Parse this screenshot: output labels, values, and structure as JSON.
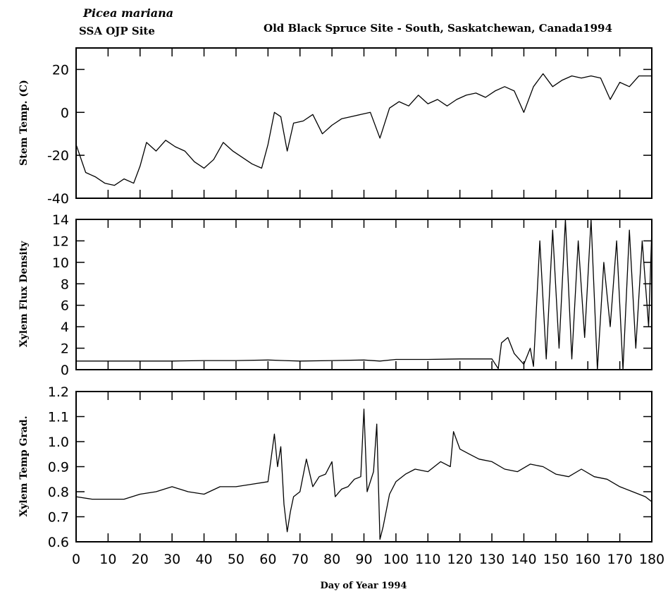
{
  "header": {
    "species": "Picea mariana",
    "site": "SSA OJP Site",
    "title": "Old Black Spruce Site - South, Saskatchewan, Canada1994"
  },
  "chart_data": [
    {
      "type": "line",
      "ylabel": "Stem Temp. (C)",
      "xlabel": "",
      "ylim": [
        -40,
        30
      ],
      "yticks": [
        -40,
        -20,
        0,
        20
      ],
      "xlim": [
        0,
        180
      ],
      "series": [
        {
          "x": [
            0,
            3,
            6,
            9,
            12,
            15,
            18,
            20,
            22,
            25,
            28,
            31,
            34,
            37,
            40,
            43,
            46,
            49,
            52,
            55,
            58,
            60,
            62,
            64,
            66,
            68,
            71,
            74,
            77,
            80,
            83,
            86,
            89,
            92,
            95,
            98,
            101,
            104,
            107,
            110,
            113,
            116,
            119,
            122,
            125,
            128,
            131,
            134,
            137,
            140,
            143,
            146,
            149,
            152,
            155,
            158,
            161,
            164,
            167,
            170,
            173,
            176,
            180
          ],
          "y": [
            -15,
            -28,
            -30,
            -33,
            -34,
            -31,
            -33,
            -25,
            -14,
            -18,
            -13,
            -16,
            -18,
            -23,
            -26,
            -22,
            -14,
            -18,
            -21,
            -24,
            -26,
            -15,
            0,
            -2,
            -18,
            -5,
            -4,
            -1,
            -10,
            -6,
            -3,
            -2,
            -1,
            0,
            -12,
            2,
            5,
            3,
            8,
            4,
            6,
            3,
            6,
            8,
            9,
            7,
            10,
            12,
            10,
            0,
            12,
            18,
            12,
            15,
            17,
            16,
            17,
            16,
            6,
            14,
            12,
            17,
            17
          ]
        }
      ]
    },
    {
      "type": "line",
      "ylabel": "Xylem Flux Density",
      "xlabel": "",
      "ylim": [
        0,
        14
      ],
      "yticks": [
        0,
        2,
        4,
        6,
        8,
        10,
        12,
        14
      ],
      "xlim": [
        0,
        180
      ],
      "series": [
        {
          "x": [
            0,
            10,
            20,
            30,
            40,
            50,
            60,
            65,
            70,
            80,
            90,
            95,
            100,
            110,
            120,
            130,
            132,
            133,
            135,
            137,
            140,
            142,
            143,
            145,
            147,
            149,
            151,
            153,
            155,
            157,
            159,
            161,
            163,
            165,
            167,
            169,
            171,
            173,
            175,
            177,
            179,
            180
          ],
          "y": [
            0.8,
            0.8,
            0.8,
            0.8,
            0.85,
            0.85,
            0.9,
            0.85,
            0.8,
            0.85,
            0.9,
            0.8,
            0.95,
            0.95,
            1.0,
            1.0,
            0.1,
            2.5,
            3.0,
            1.5,
            0.5,
            2.0,
            0.3,
            12,
            1,
            13,
            2,
            14,
            1,
            12,
            3,
            14,
            0,
            10,
            4,
            12,
            0,
            13,
            2,
            12,
            4,
            13
          ]
        }
      ]
    },
    {
      "type": "line",
      "ylabel": "Xylem Temp Grad.",
      "xlabel": "Day of Year 1994",
      "ylim": [
        0.6,
        1.2
      ],
      "yticks": [
        0.6,
        0.7,
        0.8,
        0.9,
        1.0,
        1.1,
        1.2
      ],
      "xlim": [
        0,
        180
      ],
      "xticks": [
        0,
        10,
        20,
        30,
        40,
        50,
        60,
        70,
        80,
        90,
        100,
        110,
        120,
        130,
        140,
        150,
        160,
        170,
        180
      ],
      "series": [
        {
          "x": [
            0,
            5,
            10,
            15,
            20,
            25,
            30,
            35,
            40,
            45,
            50,
            55,
            60,
            62,
            63,
            64,
            65,
            66,
            67,
            68,
            70,
            72,
            74,
            76,
            78,
            80,
            81,
            83,
            85,
            87,
            89,
            90,
            91,
            93,
            94,
            95,
            96,
            98,
            100,
            103,
            106,
            110,
            114,
            117,
            118,
            120,
            123,
            126,
            130,
            134,
            138,
            142,
            146,
            150,
            154,
            158,
            162,
            166,
            170,
            174,
            178,
            180
          ],
          "y": [
            0.78,
            0.77,
            0.77,
            0.77,
            0.79,
            0.8,
            0.82,
            0.8,
            0.79,
            0.82,
            0.82,
            0.83,
            0.84,
            1.03,
            0.9,
            0.98,
            0.75,
            0.64,
            0.72,
            0.78,
            0.8,
            0.93,
            0.82,
            0.86,
            0.87,
            0.92,
            0.78,
            0.81,
            0.82,
            0.85,
            0.86,
            1.13,
            0.8,
            0.88,
            1.07,
            0.61,
            0.66,
            0.79,
            0.84,
            0.87,
            0.89,
            0.88,
            0.92,
            0.9,
            1.04,
            0.97,
            0.95,
            0.93,
            0.92,
            0.89,
            0.88,
            0.91,
            0.9,
            0.87,
            0.86,
            0.89,
            0.86,
            0.85,
            0.82,
            0.8,
            0.78,
            0.76
          ]
        }
      ]
    }
  ]
}
